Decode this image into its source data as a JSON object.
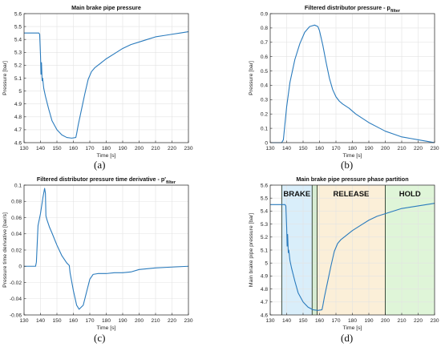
{
  "panel_labels": [
    "(a)",
    "(b)",
    "(c)",
    "(d)"
  ],
  "style": {
    "line_color": "#2a7bbd",
    "axis_color": "#262626",
    "grid_color": "#e3e3e3"
  },
  "chart_data": [
    {
      "type": "line",
      "title": "Main brake pipe pressure",
      "xlabel": "Time [s]",
      "ylabel": "Pressure [bar]",
      "xlim": [
        130,
        230
      ],
      "ylim": [
        4.6,
        5.6
      ],
      "xticks": [
        130,
        140,
        150,
        160,
        170,
        180,
        190,
        200,
        210,
        220,
        230
      ],
      "yticks": [
        4.6,
        4.7,
        4.8,
        4.9,
        5.0,
        5.1,
        5.2,
        5.3,
        5.4,
        5.5,
        5.6
      ],
      "ytick_labels": [
        "4.6",
        "4.7",
        "4.8",
        "4.9",
        "5",
        "5.1",
        "5.2",
        "5.3",
        "5.4",
        "5.5",
        "5.6"
      ],
      "grid": true,
      "series": [
        {
          "x": [
            130,
            139,
            139.5,
            140,
            140.3,
            140.6,
            141,
            141.3,
            142,
            143,
            145,
            147,
            150,
            153,
            156,
            159,
            161.5,
            162,
            163,
            165,
            167,
            169,
            171,
            173,
            176,
            180,
            185,
            190,
            195,
            200,
            205,
            210,
            215,
            220,
            225,
            230
          ],
          "y": [
            5.45,
            5.45,
            5.44,
            5.28,
            5.13,
            5.22,
            5.08,
            5.1,
            5.02,
            4.96,
            4.86,
            4.77,
            4.7,
            4.66,
            4.64,
            4.635,
            4.64,
            4.67,
            4.74,
            4.86,
            4.98,
            5.09,
            5.15,
            5.18,
            5.21,
            5.25,
            5.29,
            5.33,
            5.36,
            5.38,
            5.4,
            5.42,
            5.43,
            5.44,
            5.45,
            5.46
          ]
        }
      ]
    },
    {
      "type": "line",
      "title": "Filtered distributor pressure - p",
      "title_subscript": "filter",
      "xlabel": "Time [s]",
      "ylabel": "Pressure [bar]",
      "xlim": [
        130,
        230
      ],
      "ylim": [
        0,
        0.9
      ],
      "xticks": [
        130,
        140,
        150,
        160,
        170,
        180,
        190,
        200,
        210,
        220,
        230
      ],
      "yticks": [
        0,
        0.1,
        0.2,
        0.3,
        0.4,
        0.5,
        0.6,
        0.7,
        0.8,
        0.9
      ],
      "ytick_labels": [
        "0",
        "0.1",
        "0.2",
        "0.3",
        "0.4",
        "0.5",
        "0.6",
        "0.7",
        "0.8",
        "0.9"
      ],
      "grid": true,
      "series": [
        {
          "x": [
            130,
            137,
            138,
            140,
            142,
            145,
            148,
            151,
            154,
            157,
            159,
            160,
            162,
            164,
            166,
            168,
            170,
            172,
            174,
            178,
            182,
            186,
            190,
            195,
            200,
            205,
            210,
            215,
            220,
            225,
            230
          ],
          "y": [
            0,
            0,
            0.02,
            0.25,
            0.42,
            0.58,
            0.69,
            0.77,
            0.81,
            0.82,
            0.81,
            0.78,
            0.68,
            0.56,
            0.45,
            0.37,
            0.32,
            0.29,
            0.27,
            0.24,
            0.2,
            0.17,
            0.14,
            0.11,
            0.08,
            0.06,
            0.04,
            0.03,
            0.02,
            0.01,
            0
          ]
        }
      ]
    },
    {
      "type": "line",
      "title": "Filtered distributor pressure time derivative - p'",
      "title_subscript": "filter",
      "xlabel": "Time [s]",
      "ylabel": "Pressure time derivative [bar/s]",
      "xlim": [
        130,
        230
      ],
      "ylim": [
        -0.06,
        0.1
      ],
      "xticks": [
        130,
        140,
        150,
        160,
        170,
        180,
        190,
        200,
        210,
        220,
        230
      ],
      "yticks": [
        -0.06,
        -0.04,
        -0.02,
        0,
        0.02,
        0.04,
        0.06,
        0.08,
        0.1
      ],
      "ytick_labels": [
        "-0.06",
        "-0.04",
        "-0.02",
        "0",
        "0.02",
        "0.04",
        "0.06",
        "0.08",
        "0.1"
      ],
      "grid": true,
      "series": [
        {
          "x": [
            130,
            137,
            137.5,
            138.5,
            140,
            141.5,
            142.5,
            143,
            143.3,
            144,
            145.5,
            147,
            150,
            153,
            156,
            157.5,
            158,
            160,
            162,
            163.5,
            166,
            168,
            170,
            172,
            175,
            180,
            185,
            190,
            195,
            200,
            210,
            220,
            230
          ],
          "y": [
            0,
            0,
            0.005,
            0.05,
            0.065,
            0.085,
            0.096,
            0.09,
            0.062,
            0.057,
            0.048,
            0.041,
            0.026,
            0.013,
            0.004,
            0.001,
            -0.008,
            -0.03,
            -0.048,
            -0.053,
            -0.048,
            -0.032,
            -0.016,
            -0.01,
            -0.009,
            -0.009,
            -0.008,
            -0.008,
            -0.007,
            -0.004,
            -0.002,
            -0.001,
            0
          ]
        }
      ]
    },
    {
      "type": "line",
      "title": "Main brake pipe pressure phase partition",
      "xlabel": "Time [s]",
      "ylabel": "Main brake pipe pressure [bar]",
      "xlim": [
        130,
        230
      ],
      "ylim": [
        4.6,
        5.6
      ],
      "xticks": [
        130,
        140,
        150,
        160,
        170,
        180,
        190,
        200,
        210,
        220,
        230
      ],
      "yticks": [
        4.6,
        4.7,
        4.8,
        4.9,
        5.0,
        5.1,
        5.2,
        5.3,
        5.4,
        5.5,
        5.6
      ],
      "ytick_labels": [
        "4.6",
        "4.7",
        "4.8",
        "4.9",
        "5",
        "5.1",
        "5.2",
        "5.3",
        "5.4",
        "5.5",
        "5.6"
      ],
      "grid": true,
      "regions": [
        {
          "label": "BRAKE",
          "x0": 137,
          "x1": 155.5,
          "color": "#d9eefa"
        },
        {
          "label": "",
          "x0": 155.5,
          "x1": 158.5,
          "color": "#d7ecd3"
        },
        {
          "label": "RELEASE",
          "x0": 158.5,
          "x1": 200,
          "color": "#fbefd8"
        },
        {
          "label": "HOLD",
          "x0": 200,
          "x1": 230,
          "color": "#dff5d8"
        }
      ],
      "boundaries": [
        137,
        155.5,
        158.5,
        200
      ],
      "series": [
        {
          "x": [
            130,
            139,
            139.5,
            140,
            140.3,
            140.6,
            141,
            141.3,
            142,
            143,
            145,
            147,
            150,
            153,
            156,
            159,
            161.5,
            162,
            163,
            165,
            167,
            169,
            171,
            173,
            176,
            180,
            185,
            190,
            195,
            200,
            205,
            210,
            215,
            220,
            225,
            230
          ],
          "y": [
            5.45,
            5.45,
            5.44,
            5.28,
            5.13,
            5.22,
            5.08,
            5.1,
            5.02,
            4.96,
            4.86,
            4.77,
            4.7,
            4.66,
            4.64,
            4.635,
            4.64,
            4.67,
            4.74,
            4.86,
            4.98,
            5.09,
            5.15,
            5.18,
            5.21,
            5.25,
            5.29,
            5.33,
            5.36,
            5.38,
            5.4,
            5.42,
            5.43,
            5.44,
            5.45,
            5.46
          ]
        }
      ]
    }
  ]
}
